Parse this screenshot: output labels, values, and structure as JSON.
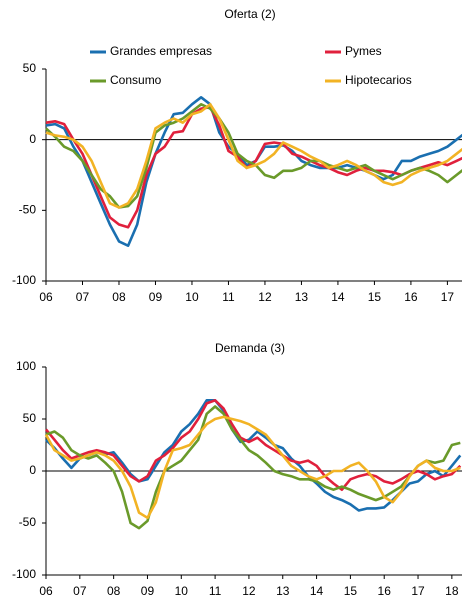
{
  "chart_data": [
    {
      "type": "line",
      "title": "Oferta (2)",
      "legend": "top",
      "x": [
        2006,
        2006.25,
        2006.5,
        2006.75,
        2007,
        2007.25,
        2007.5,
        2007.75,
        2008,
        2008.25,
        2008.5,
        2008.75,
        2009,
        2009.25,
        2009.5,
        2009.75,
        2010,
        2010.25,
        2010.5,
        2010.75,
        2011,
        2011.25,
        2011.5,
        2011.75,
        2012,
        2012.25,
        2012.5,
        2012.75,
        2013,
        2013.25,
        2013.5,
        2013.75,
        2014,
        2014.25,
        2014.5,
        2014.75,
        2015,
        2015.25,
        2015.5,
        2015.75,
        2016,
        2016.25,
        2016.5,
        2016.75,
        2017,
        2017.25,
        2017.5
      ],
      "xlim": [
        2006,
        2017.4
      ],
      "xticks": [
        {
          "value": 2006,
          "label": "06"
        },
        {
          "value": 2007,
          "label": "07"
        },
        {
          "value": 2008,
          "label": "08"
        },
        {
          "value": 2009,
          "label": "09"
        },
        {
          "value": 2010,
          "label": "10"
        },
        {
          "value": 2011,
          "label": "11"
        },
        {
          "value": 2012,
          "label": "12"
        },
        {
          "value": 2013,
          "label": "13"
        },
        {
          "value": 2014,
          "label": "14"
        },
        {
          "value": 2015,
          "label": "15"
        },
        {
          "value": 2016,
          "label": "16"
        },
        {
          "value": 2017,
          "label": "17"
        }
      ],
      "ylim": [
        -100,
        50
      ],
      "yticks": [
        -100,
        -50,
        0,
        50
      ],
      "series": [
        {
          "name": "Grandes empresas",
          "color": "#1a6fb0",
          "values": [
            10,
            11,
            8,
            -5,
            -15,
            -30,
            -45,
            -60,
            -72,
            -75,
            -60,
            -30,
            -10,
            5,
            18,
            19,
            25,
            30,
            25,
            5,
            -5,
            -10,
            -18,
            -15,
            -5,
            -5,
            -4,
            -8,
            -15,
            -18,
            -20,
            -20,
            -20,
            -18,
            -20,
            -22,
            -25,
            -28,
            -25,
            -15,
            -15,
            -12,
            -10,
            -8,
            -5,
            0,
            5
          ]
        },
        {
          "name": "Pymes",
          "color": "#e0203c",
          "values": [
            12,
            13,
            11,
            0,
            -10,
            -25,
            -40,
            -55,
            -60,
            -62,
            -50,
            -25,
            -10,
            -5,
            5,
            6,
            18,
            22,
            23,
            10,
            -8,
            -12,
            -20,
            -15,
            -3,
            -2,
            -3,
            -10,
            -12,
            -15,
            -18,
            -20,
            -23,
            -25,
            -22,
            -20,
            -22,
            -22,
            -23,
            -25,
            -22,
            -20,
            -18,
            -16,
            -18,
            -15,
            -12
          ]
        },
        {
          "name": "Consumo",
          "color": "#6a9a2a",
          "values": [
            8,
            2,
            -5,
            -8,
            -15,
            -25,
            -35,
            -40,
            -48,
            -47,
            -40,
            -20,
            5,
            10,
            12,
            15,
            20,
            25,
            22,
            15,
            5,
            -10,
            -15,
            -18,
            -25,
            -27,
            -22,
            -22,
            -20,
            -15,
            -15,
            -18,
            -20,
            -22,
            -20,
            -18,
            -22,
            -25,
            -28,
            -25,
            -22,
            -20,
            -22,
            -25,
            -30,
            -25,
            -20
          ]
        },
        {
          "name": "Hipotecarios",
          "color": "#f2b324",
          "values": [
            5,
            3,
            2,
            0,
            -5,
            -15,
            -30,
            -45,
            -48,
            -45,
            -35,
            -15,
            8,
            12,
            15,
            12,
            18,
            20,
            25,
            15,
            0,
            -15,
            -20,
            -18,
            -15,
            -10,
            -2,
            -5,
            -8,
            -12,
            -15,
            -20,
            -18,
            -15,
            -18,
            -22,
            -25,
            -30,
            -32,
            -30,
            -25,
            -22,
            -20,
            -18,
            -15,
            -10,
            -5
          ]
        }
      ]
    },
    {
      "type": "line",
      "title": "Demanda (3)",
      "x": [
        2006,
        2006.25,
        2006.5,
        2006.75,
        2007,
        2007.25,
        2007.5,
        2007.75,
        2008,
        2008.25,
        2008.5,
        2008.75,
        2009,
        2009.25,
        2009.5,
        2009.75,
        2010,
        2010.25,
        2010.5,
        2010.75,
        2011,
        2011.25,
        2011.5,
        2011.75,
        2012,
        2012.25,
        2012.5,
        2012.75,
        2013,
        2013.25,
        2013.5,
        2013.75,
        2014,
        2014.25,
        2014.5,
        2014.75,
        2015,
        2015.25,
        2015.5,
        2015.75,
        2016,
        2016.25,
        2016.5,
        2016.75,
        2017,
        2017.25,
        2017.5,
        2017.75,
        2018,
        2018.25
      ],
      "xlim": [
        2006,
        2018.3
      ],
      "xticks": [
        {
          "value": 2006,
          "label": "06"
        },
        {
          "value": 2007,
          "label": "07"
        },
        {
          "value": 2008,
          "label": "08"
        },
        {
          "value": 2009,
          "label": "09"
        },
        {
          "value": 2010,
          "label": "10"
        },
        {
          "value": 2011,
          "label": "11"
        },
        {
          "value": 2012,
          "label": "12"
        },
        {
          "value": 2013,
          "label": "13"
        },
        {
          "value": 2014,
          "label": "14"
        },
        {
          "value": 2015,
          "label": "15"
        },
        {
          "value": 2016,
          "label": "16"
        },
        {
          "value": 2017,
          "label": "17"
        },
        {
          "value": 2018,
          "label": "18"
        }
      ],
      "ylim": [
        -100,
        100
      ],
      "yticks": [
        -100,
        -50,
        0,
        50,
        100
      ],
      "series": [
        {
          "color": "#1a6fb0",
          "values": [
            30,
            22,
            12,
            3,
            12,
            15,
            18,
            16,
            18,
            8,
            -3,
            -10,
            -8,
            5,
            18,
            25,
            38,
            45,
            55,
            68,
            68,
            58,
            40,
            28,
            30,
            38,
            32,
            25,
            22,
            12,
            5,
            -5,
            -12,
            -20,
            -25,
            -28,
            -32,
            -38,
            -36,
            -36,
            -35,
            -28,
            -20,
            -12,
            -10,
            -3,
            0,
            -5,
            5,
            15
          ]
        },
        {
          "color": "#e0203c",
          "values": [
            40,
            30,
            20,
            12,
            15,
            18,
            20,
            18,
            15,
            5,
            -5,
            -10,
            -5,
            10,
            15,
            22,
            32,
            38,
            50,
            65,
            68,
            60,
            45,
            32,
            28,
            32,
            25,
            20,
            15,
            10,
            8,
            10,
            5,
            -5,
            -12,
            -18,
            -8,
            -5,
            -3,
            -5,
            -10,
            -12,
            -8,
            -3,
            0,
            -3,
            -8,
            -5,
            -3,
            5
          ]
        },
        {
          "color": "#6a9a2a",
          "values": [
            35,
            38,
            32,
            20,
            15,
            12,
            15,
            8,
            0,
            -20,
            -50,
            -55,
            -48,
            -20,
            0,
            5,
            10,
            20,
            30,
            55,
            62,
            55,
            40,
            30,
            20,
            15,
            8,
            0,
            -3,
            -5,
            -8,
            -8,
            -10,
            -15,
            -18,
            -15,
            -18,
            -22,
            -25,
            -28,
            -25,
            -20,
            -15,
            -5,
            5,
            10,
            8,
            10,
            25,
            27
          ]
        },
        {
          "color": "#f2b324",
          "values": [
            35,
            20,
            15,
            10,
            12,
            15,
            18,
            15,
            10,
            0,
            -15,
            -40,
            -45,
            -30,
            0,
            20,
            22,
            25,
            35,
            45,
            50,
            52,
            50,
            48,
            45,
            40,
            35,
            25,
            15,
            5,
            0,
            -5,
            -8,
            -5,
            0,
            0,
            5,
            8,
            0,
            -10,
            -25,
            -30,
            -20,
            -5,
            5,
            10,
            3,
            0,
            0,
            3
          ]
        }
      ]
    }
  ]
}
